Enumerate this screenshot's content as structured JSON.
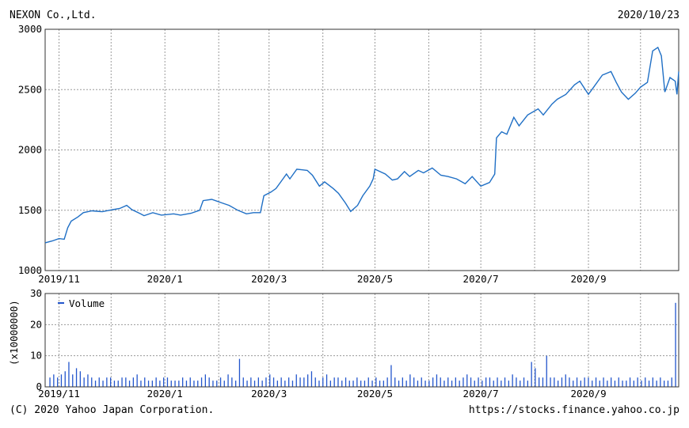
{
  "header": {
    "company": "NEXON Co.,Ltd.",
    "date": "2020/10/23"
  },
  "footer": {
    "copyright": "(C) 2020 Yahoo Japan Corporation.",
    "url": "https://stocks.finance.yahoo.co.jp"
  },
  "colors": {
    "line": "#1f6fc5",
    "bar": "#2255cc",
    "grid": "#9a9a9a",
    "frame": "#333333"
  },
  "chart_data": [
    {
      "type": "line",
      "title": "",
      "ylim": [
        1000,
        3000
      ],
      "yticks": [
        1000,
        1500,
        2000,
        2500,
        3000
      ],
      "x_range": [
        "2019-10-24",
        "2020-10-23"
      ],
      "xtick_labels": [
        "2019/11",
        "2020/1",
        "2020/3",
        "2020/5",
        "2020/7",
        "2020/9"
      ],
      "xtick_dates": [
        "2019-11-01",
        "2020-01-01",
        "2020-03-01",
        "2020-05-01",
        "2020-07-01",
        "2020-09-01"
      ],
      "grid_dates": [
        "2019-11-01",
        "2019-12-01",
        "2020-01-01",
        "2020-02-01",
        "2020-03-01",
        "2020-04-01",
        "2020-05-01",
        "2020-06-01",
        "2020-07-01",
        "2020-08-01",
        "2020-09-01",
        "2020-10-01"
      ],
      "grid": true,
      "series": [
        {
          "name": "",
          "points": [
            [
              "2019-10-24",
              1230
            ],
            [
              "2019-10-28",
              1245
            ],
            [
              "2019-11-01",
              1265
            ],
            [
              "2019-11-04",
              1260
            ],
            [
              "2019-11-06",
              1355
            ],
            [
              "2019-11-08",
              1410
            ],
            [
              "2019-11-12",
              1445
            ],
            [
              "2019-11-15",
              1480
            ],
            [
              "2019-11-20",
              1495
            ],
            [
              "2019-11-26",
              1488
            ],
            [
              "2019-12-02",
              1505
            ],
            [
              "2019-12-06",
              1515
            ],
            [
              "2019-12-10",
              1540
            ],
            [
              "2019-12-13",
              1505
            ],
            [
              "2019-12-18",
              1470
            ],
            [
              "2019-12-20",
              1455
            ],
            [
              "2019-12-25",
              1480
            ],
            [
              "2019-12-30",
              1460
            ],
            [
              "2020-01-06",
              1470
            ],
            [
              "2020-01-10",
              1460
            ],
            [
              "2020-01-16",
              1475
            ],
            [
              "2020-01-21",
              1500
            ],
            [
              "2020-01-23",
              1580
            ],
            [
              "2020-01-28",
              1590
            ],
            [
              "2020-02-03",
              1560
            ],
            [
              "2020-02-07",
              1540
            ],
            [
              "2020-02-12",
              1500
            ],
            [
              "2020-02-17",
              1470
            ],
            [
              "2020-02-21",
              1480
            ],
            [
              "2020-02-25",
              1480
            ],
            [
              "2020-02-27",
              1620
            ],
            [
              "2020-03-02",
              1650
            ],
            [
              "2020-03-05",
              1680
            ],
            [
              "2020-03-09",
              1760
            ],
            [
              "2020-03-11",
              1800
            ],
            [
              "2020-03-13",
              1760
            ],
            [
              "2020-03-17",
              1840
            ],
            [
              "2020-03-23",
              1830
            ],
            [
              "2020-03-26",
              1790
            ],
            [
              "2020-03-30",
              1700
            ],
            [
              "2020-04-02",
              1735
            ],
            [
              "2020-04-07",
              1680
            ],
            [
              "2020-04-10",
              1640
            ],
            [
              "2020-04-14",
              1560
            ],
            [
              "2020-04-17",
              1490
            ],
            [
              "2020-04-21",
              1540
            ],
            [
              "2020-04-24",
              1620
            ],
            [
              "2020-04-28",
              1700
            ],
            [
              "2020-04-30",
              1760
            ],
            [
              "2020-05-01",
              1840
            ],
            [
              "2020-05-07",
              1800
            ],
            [
              "2020-05-11",
              1750
            ],
            [
              "2020-05-14",
              1760
            ],
            [
              "2020-05-18",
              1820
            ],
            [
              "2020-05-21",
              1780
            ],
            [
              "2020-05-26",
              1830
            ],
            [
              "2020-05-29",
              1810
            ],
            [
              "2020-06-03",
              1850
            ],
            [
              "2020-06-08",
              1790
            ],
            [
              "2020-06-12",
              1780
            ],
            [
              "2020-06-17",
              1760
            ],
            [
              "2020-06-22",
              1720
            ],
            [
              "2020-06-26",
              1780
            ],
            [
              "2020-07-01",
              1700
            ],
            [
              "2020-07-06",
              1730
            ],
            [
              "2020-07-09",
              1800
            ],
            [
              "2020-07-10",
              2100
            ],
            [
              "2020-07-13",
              2150
            ],
            [
              "2020-07-16",
              2130
            ],
            [
              "2020-07-20",
              2270
            ],
            [
              "2020-07-23",
              2200
            ],
            [
              "2020-07-28",
              2290
            ],
            [
              "2020-08-03",
              2340
            ],
            [
              "2020-08-06",
              2290
            ],
            [
              "2020-08-11",
              2380
            ],
            [
              "2020-08-14",
              2420
            ],
            [
              "2020-08-19",
              2460
            ],
            [
              "2020-08-24",
              2540
            ],
            [
              "2020-08-27",
              2570
            ],
            [
              "2020-09-01",
              2460
            ],
            [
              "2020-09-04",
              2520
            ],
            [
              "2020-09-09",
              2620
            ],
            [
              "2020-09-14",
              2650
            ],
            [
              "2020-09-17",
              2560
            ],
            [
              "2020-09-20",
              2480
            ],
            [
              "2020-09-24",
              2420
            ],
            [
              "2020-09-28",
              2470
            ],
            [
              "2020-10-01",
              2520
            ],
            [
              "2020-10-05",
              2560
            ],
            [
              "2020-10-08",
              2820
            ],
            [
              "2020-10-11",
              2850
            ],
            [
              "2020-10-13",
              2780
            ],
            [
              "2020-10-15",
              2480
            ],
            [
              "2020-10-18",
              2600
            ],
            [
              "2020-10-21",
              2570
            ],
            [
              "2020-10-22",
              2460
            ],
            [
              "2020-10-23",
              2650
            ]
          ]
        }
      ]
    },
    {
      "type": "bar",
      "ylim": [
        0,
        30
      ],
      "yticks": [
        0,
        10,
        20,
        30
      ],
      "ylabel": "(x10000000)",
      "legend": "Volume",
      "series": [
        {
          "name": "Volume",
          "values": [
            3,
            4,
            3,
            4,
            5,
            8,
            4,
            6,
            5,
            3,
            4,
            3,
            2,
            3,
            2,
            3,
            3,
            2,
            2,
            3,
            3,
            2,
            3,
            4,
            2,
            3,
            2,
            2,
            3,
            2,
            3,
            3,
            2,
            2,
            2,
            3,
            2,
            3,
            2,
            2,
            3,
            4,
            3,
            2,
            2,
            3,
            2,
            4,
            3,
            2,
            9,
            3,
            2,
            3,
            2,
            3,
            2,
            3,
            4,
            3,
            2,
            3,
            2,
            3,
            2,
            4,
            3,
            3,
            4,
            5,
            3,
            2,
            3,
            4,
            2,
            3,
            3,
            2,
            3,
            2,
            2,
            3,
            2,
            2,
            3,
            2,
            3,
            2,
            2,
            3,
            7,
            3,
            2,
            3,
            2,
            4,
            3,
            2,
            3,
            2,
            2,
            3,
            4,
            3,
            2,
            3,
            2,
            3,
            2,
            3,
            4,
            3,
            2,
            3,
            2,
            3,
            3,
            2,
            3,
            2,
            3,
            2,
            4,
            3,
            2,
            3,
            2,
            8,
            6,
            3,
            3,
            10,
            3,
            3,
            2,
            3,
            4,
            3,
            2,
            3,
            2,
            3,
            3,
            2,
            3,
            2,
            3,
            2,
            3,
            2,
            3,
            2,
            2,
            3,
            2,
            3,
            2,
            3,
            2,
            3,
            2,
            3,
            2,
            2,
            3,
            27
          ]
        }
      ]
    }
  ]
}
